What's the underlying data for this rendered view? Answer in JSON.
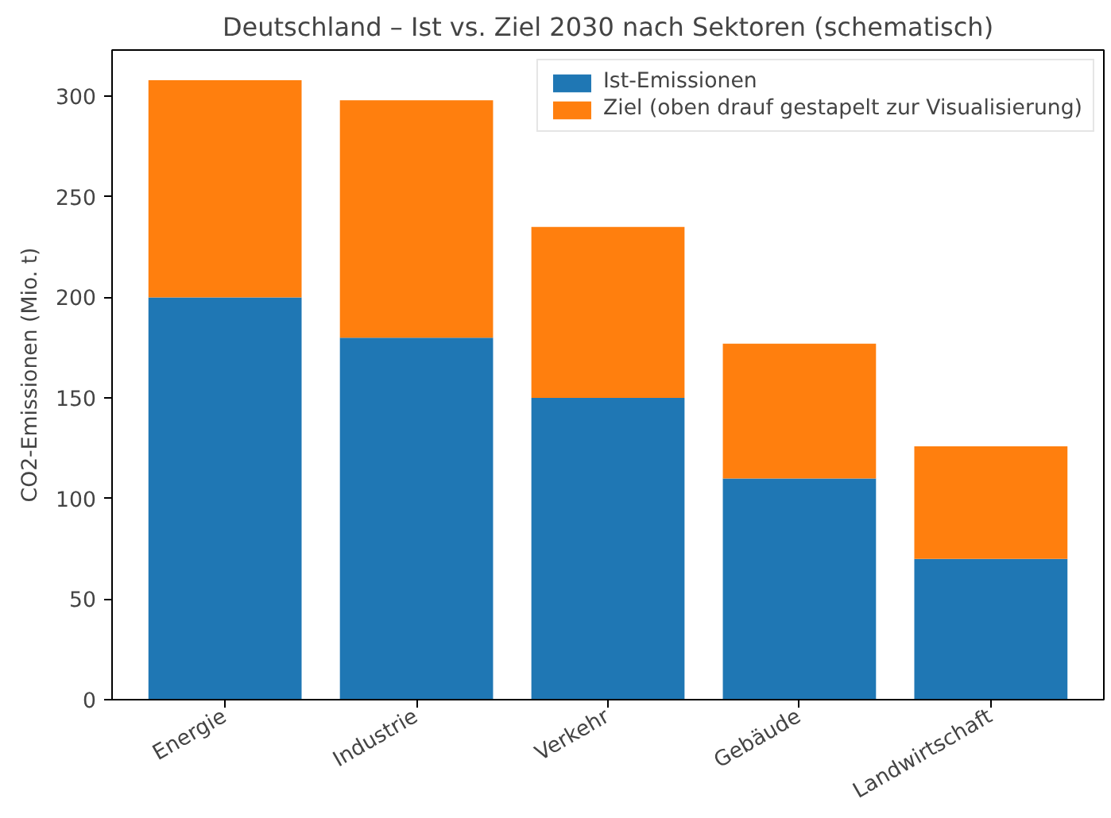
{
  "chart_data": {
    "type": "bar",
    "title": "Deutschland – Ist vs. Ziel 2030 nach Sektoren (schematisch)",
    "ylabel": "CO2-Emissionen (Mio. t)",
    "categories": [
      "Energie",
      "Industrie",
      "Verkehr",
      "Gebäude",
      "Landwirtschaft"
    ],
    "stacked": true,
    "series": [
      {
        "name": "Ist-Emissionen",
        "color": "#1f77b4",
        "values": [
          200,
          180,
          150,
          110,
          70
        ]
      },
      {
        "name": "Ziel (oben drauf gestapelt zur Visualisierung)",
        "color": "#ff7f0e",
        "values": [
          108,
          118,
          85,
          67,
          56
        ]
      }
    ],
    "ylim": [
      0,
      323
    ],
    "yticks": [
      0,
      50,
      100,
      150,
      200,
      250,
      300
    ],
    "grid": false,
    "legend": "top right"
  }
}
